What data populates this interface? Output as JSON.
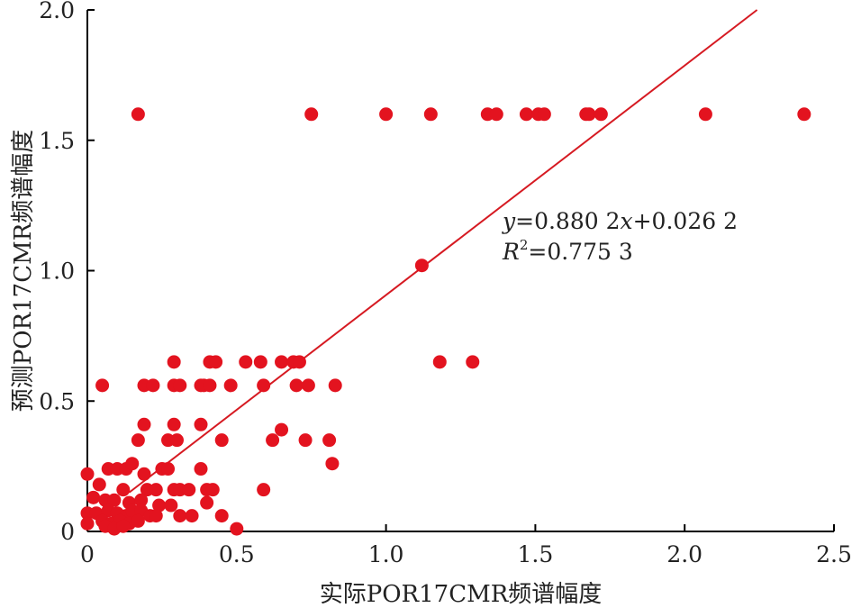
{
  "chart_data": {
    "type": "scatter",
    "title": "",
    "xlabel": "实际POR17CMR频谱幅度",
    "ylabel": "预测POR17CMR频谱幅度",
    "xlim": [
      0,
      2.5
    ],
    "ylim": [
      0,
      2.0
    ],
    "x_ticks": [
      "0",
      "0.5",
      "1.0",
      "1.5",
      "2.0",
      "2.5"
    ],
    "y_ticks": [
      "0",
      "0.5",
      "1.0",
      "1.5",
      "2.0"
    ],
    "grid": false,
    "colors": {
      "points": "#e3131f",
      "fit_line": "#d61a22",
      "axis": "#000000"
    },
    "fit": {
      "slope": 0.8802,
      "intercept": 0.0262,
      "equation": "y=0.880 2x+0.026 2",
      "r2": "R2=0.775 3",
      "eq_y": "y",
      "eq_rest1": "=0.880 2",
      "eq_x": "x",
      "eq_rest2": "+0.026 2",
      "r2_R": "R",
      "r2_sup": "2",
      "r2_rest": "=0.775 3"
    },
    "points": [
      [
        0.17,
        1.6
      ],
      [
        0.75,
        1.6
      ],
      [
        1.0,
        1.6
      ],
      [
        1.15,
        1.6
      ],
      [
        1.34,
        1.6
      ],
      [
        1.37,
        1.6
      ],
      [
        1.47,
        1.6
      ],
      [
        1.51,
        1.6
      ],
      [
        1.53,
        1.6
      ],
      [
        1.67,
        1.6
      ],
      [
        1.68,
        1.6
      ],
      [
        1.72,
        1.6
      ],
      [
        2.07,
        1.6
      ],
      [
        2.4,
        1.6
      ],
      [
        1.12,
        1.02
      ],
      [
        1.18,
        0.65
      ],
      [
        1.29,
        0.65
      ],
      [
        0.29,
        0.65
      ],
      [
        0.41,
        0.65
      ],
      [
        0.43,
        0.65
      ],
      [
        0.53,
        0.65
      ],
      [
        0.58,
        0.65
      ],
      [
        0.65,
        0.65
      ],
      [
        0.69,
        0.65
      ],
      [
        0.71,
        0.65
      ],
      [
        0.05,
        0.56
      ],
      [
        0.19,
        0.56
      ],
      [
        0.22,
        0.56
      ],
      [
        0.29,
        0.56
      ],
      [
        0.31,
        0.56
      ],
      [
        0.38,
        0.56
      ],
      [
        0.39,
        0.56
      ],
      [
        0.41,
        0.56
      ],
      [
        0.48,
        0.56
      ],
      [
        0.59,
        0.56
      ],
      [
        0.7,
        0.56
      ],
      [
        0.74,
        0.56
      ],
      [
        0.83,
        0.56
      ],
      [
        0.19,
        0.41
      ],
      [
        0.29,
        0.41
      ],
      [
        0.38,
        0.41
      ],
      [
        0.65,
        0.39
      ],
      [
        0.17,
        0.35
      ],
      [
        0.27,
        0.35
      ],
      [
        0.3,
        0.35
      ],
      [
        0.45,
        0.35
      ],
      [
        0.62,
        0.35
      ],
      [
        0.73,
        0.35
      ],
      [
        0.81,
        0.35
      ],
      [
        0.82,
        0.26
      ],
      [
        0.0,
        0.22
      ],
      [
        0.07,
        0.24
      ],
      [
        0.1,
        0.24
      ],
      [
        0.13,
        0.24
      ],
      [
        0.15,
        0.26
      ],
      [
        0.25,
        0.24
      ],
      [
        0.27,
        0.24
      ],
      [
        0.38,
        0.24
      ],
      [
        0.19,
        0.22
      ],
      [
        0.04,
        0.18
      ],
      [
        0.12,
        0.16
      ],
      [
        0.2,
        0.16
      ],
      [
        0.23,
        0.16
      ],
      [
        0.29,
        0.16
      ],
      [
        0.31,
        0.16
      ],
      [
        0.34,
        0.16
      ],
      [
        0.4,
        0.16
      ],
      [
        0.42,
        0.16
      ],
      [
        0.59,
        0.16
      ],
      [
        0.02,
        0.13
      ],
      [
        0.06,
        0.12
      ],
      [
        0.09,
        0.12
      ],
      [
        0.14,
        0.11
      ],
      [
        0.18,
        0.12
      ],
      [
        0.24,
        0.1
      ],
      [
        0.28,
        0.1
      ],
      [
        0.4,
        0.11
      ],
      [
        0.0,
        0.07
      ],
      [
        0.03,
        0.07
      ],
      [
        0.07,
        0.08
      ],
      [
        0.1,
        0.07
      ],
      [
        0.13,
        0.06
      ],
      [
        0.15,
        0.08
      ],
      [
        0.18,
        0.08
      ],
      [
        0.21,
        0.06
      ],
      [
        0.23,
        0.06
      ],
      [
        0.31,
        0.06
      ],
      [
        0.35,
        0.06
      ],
      [
        0.45,
        0.06
      ],
      [
        0.0,
        0.03
      ],
      [
        0.05,
        0.04
      ],
      [
        0.08,
        0.03
      ],
      [
        0.11,
        0.04
      ],
      [
        0.14,
        0.03
      ],
      [
        0.17,
        0.04
      ],
      [
        0.06,
        0.02
      ],
      [
        0.09,
        0.01
      ],
      [
        0.12,
        0.02
      ],
      [
        0.5,
        0.01
      ]
    ]
  }
}
